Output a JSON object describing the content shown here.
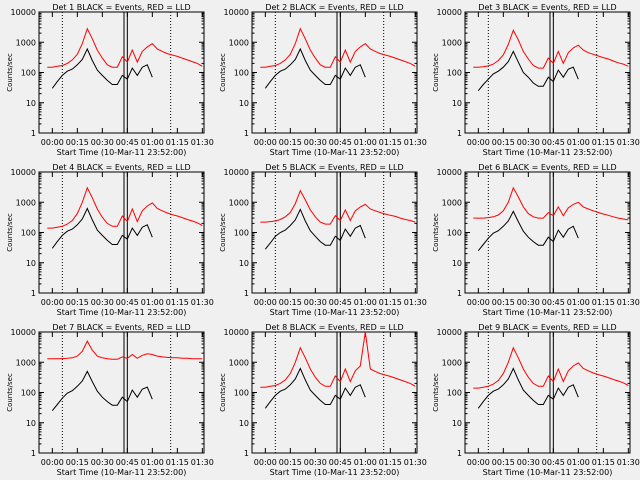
{
  "chart_data": {
    "type": "line",
    "layout": "3x3 grid of panels",
    "scale": "log-y",
    "ylabel": "Counts/sec",
    "xlabel": "Start Time (10-Mar-11 23:52:00)",
    "x_ticks": [
      "00:00",
      "00:15",
      "00:30",
      "00:45",
      "01:00",
      "01:15",
      "01:30"
    ],
    "y_ticks": [
      "1",
      "10",
      "100",
      "1000",
      "10000"
    ],
    "ylim": [
      1,
      10000
    ],
    "x_range": [
      "23:52",
      "01:31"
    ],
    "legend_text": "BLACK = Events, RED = LLD",
    "series_colors": {
      "events": "#000000",
      "lld": "#ff0000"
    },
    "markers": {
      "dotted_lines": [
        "00:06",
        "01:11"
      ],
      "solid_band": [
        "00:43",
        "00:45"
      ]
    },
    "x_data_minutes": [
      5,
      8,
      11,
      14,
      17,
      20,
      23,
      26,
      29,
      32,
      35,
      38,
      41,
      44,
      47,
      50,
      53,
      56,
      59,
      62,
      65,
      68,
      71,
      74,
      77,
      80,
      83,
      86,
      89,
      92,
      95,
      98
    ],
    "panels": [
      {
        "title": "Det  1",
        "events": [
          null,
          30,
          50,
          80,
          110,
          130,
          180,
          270,
          600,
          250,
          120,
          80,
          55,
          40,
          40,
          80,
          60,
          140,
          80,
          150,
          180,
          70,
          null,
          null,
          null,
          null,
          null,
          null,
          null,
          null,
          null,
          null
        ],
        "lld": [
          150,
          150,
          160,
          170,
          200,
          260,
          400,
          900,
          2800,
          1300,
          550,
          300,
          180,
          150,
          150,
          330,
          220,
          550,
          220,
          500,
          700,
          900,
          600,
          500,
          420,
          380,
          340,
          300,
          260,
          230,
          200,
          160
        ]
      },
      {
        "title": "Det  2",
        "events": [
          null,
          30,
          50,
          80,
          110,
          130,
          180,
          270,
          600,
          250,
          120,
          80,
          55,
          40,
          40,
          80,
          60,
          140,
          80,
          150,
          180,
          70,
          null,
          null,
          null,
          null,
          null,
          null,
          null,
          null,
          null,
          null
        ],
        "lld": [
          150,
          150,
          160,
          170,
          200,
          260,
          400,
          900,
          2800,
          1300,
          550,
          300,
          180,
          150,
          150,
          330,
          220,
          550,
          220,
          500,
          700,
          900,
          600,
          500,
          420,
          380,
          340,
          300,
          260,
          230,
          200,
          160
        ]
      },
      {
        "title": "Det  3",
        "events": [
          null,
          25,
          40,
          60,
          90,
          110,
          150,
          230,
          500,
          220,
          100,
          70,
          45,
          35,
          35,
          70,
          50,
          120,
          70,
          130,
          150,
          60,
          null,
          null,
          null,
          null,
          null,
          null,
          null,
          null,
          null,
          null
        ],
        "lld": [
          150,
          150,
          155,
          165,
          190,
          250,
          380,
          850,
          2500,
          1200,
          500,
          280,
          170,
          140,
          140,
          300,
          200,
          500,
          200,
          450,
          650,
          800,
          550,
          450,
          400,
          350,
          310,
          280,
          240,
          210,
          190,
          160
        ]
      },
      {
        "title": "Det  4",
        "events": [
          null,
          30,
          50,
          80,
          110,
          130,
          180,
          280,
          620,
          260,
          120,
          80,
          55,
          40,
          40,
          80,
          60,
          140,
          80,
          150,
          180,
          70,
          null,
          null,
          null,
          null,
          null,
          null,
          null,
          null,
          null,
          null
        ],
        "lld": [
          140,
          140,
          150,
          160,
          190,
          250,
          420,
          1000,
          3000,
          1400,
          600,
          320,
          200,
          160,
          160,
          350,
          230,
          600,
          230,
          520,
          750,
          950,
          620,
          520,
          440,
          390,
          350,
          310,
          270,
          240,
          210,
          170
        ]
      },
      {
        "title": "Det  5",
        "events": [
          null,
          28,
          45,
          75,
          100,
          120,
          170,
          260,
          580,
          240,
          115,
          75,
          50,
          38,
          38,
          75,
          55,
          130,
          75,
          140,
          170,
          65,
          null,
          null,
          null,
          null,
          null,
          null,
          null,
          null,
          null,
          null
        ],
        "lld": [
          220,
          220,
          230,
          240,
          270,
          330,
          460,
          900,
          2400,
          1200,
          560,
          330,
          220,
          190,
          190,
          360,
          250,
          560,
          250,
          520,
          700,
          850,
          600,
          520,
          460,
          410,
          370,
          340,
          300,
          270,
          250,
          220
        ]
      },
      {
        "title": "Det  6",
        "events": [
          null,
          25,
          40,
          65,
          95,
          115,
          160,
          240,
          500,
          230,
          110,
          70,
          50,
          38,
          38,
          70,
          50,
          120,
          70,
          130,
          160,
          65,
          null,
          null,
          null,
          null,
          null,
          null,
          null,
          null,
          null,
          null
        ],
        "lld": [
          300,
          300,
          300,
          310,
          330,
          380,
          520,
          1000,
          3000,
          1500,
          700,
          420,
          330,
          300,
          300,
          450,
          360,
          700,
          360,
          650,
          850,
          1000,
          700,
          600,
          520,
          460,
          410,
          370,
          330,
          300,
          280,
          260
        ]
      },
      {
        "title": "Det  7",
        "events": [
          null,
          25,
          40,
          65,
          95,
          115,
          160,
          240,
          500,
          230,
          110,
          70,
          50,
          38,
          38,
          70,
          50,
          120,
          70,
          130,
          150,
          60,
          null,
          null,
          null,
          null,
          null,
          null,
          null,
          null,
          null,
          null
        ],
        "lld": [
          1300,
          1300,
          1300,
          1320,
          1350,
          1400,
          1600,
          2300,
          5000,
          2500,
          1600,
          1400,
          1300,
          1250,
          1250,
          1500,
          1350,
          1800,
          1350,
          1700,
          1900,
          1800,
          1600,
          1500,
          1450,
          1400,
          1400,
          1350,
          1350,
          1300,
          1300,
          1300
        ]
      },
      {
        "title": "Det  8",
        "events": [
          null,
          30,
          50,
          80,
          110,
          130,
          180,
          280,
          620,
          260,
          120,
          80,
          55,
          40,
          40,
          80,
          60,
          140,
          80,
          150,
          180,
          70,
          null,
          null,
          null,
          null,
          null,
          null,
          null,
          null,
          null,
          null
        ],
        "lld": [
          150,
          150,
          160,
          170,
          200,
          260,
          420,
          1000,
          3000,
          1400,
          600,
          320,
          200,
          160,
          160,
          350,
          230,
          600,
          230,
          520,
          750,
          10000,
          600,
          500,
          420,
          380,
          340,
          300,
          260,
          230,
          200,
          160
        ]
      },
      {
        "title": "Det  9",
        "events": [
          null,
          30,
          50,
          80,
          110,
          130,
          180,
          280,
          620,
          260,
          120,
          80,
          55,
          40,
          40,
          80,
          60,
          140,
          80,
          150,
          180,
          70,
          null,
          null,
          null,
          null,
          null,
          null,
          null,
          null,
          null,
          null
        ],
        "lld": [
          140,
          140,
          150,
          160,
          190,
          250,
          420,
          1000,
          3000,
          1400,
          600,
          320,
          200,
          160,
          160,
          350,
          230,
          600,
          230,
          520,
          750,
          950,
          620,
          520,
          440,
          390,
          350,
          310,
          270,
          240,
          210,
          170
        ]
      }
    ]
  }
}
